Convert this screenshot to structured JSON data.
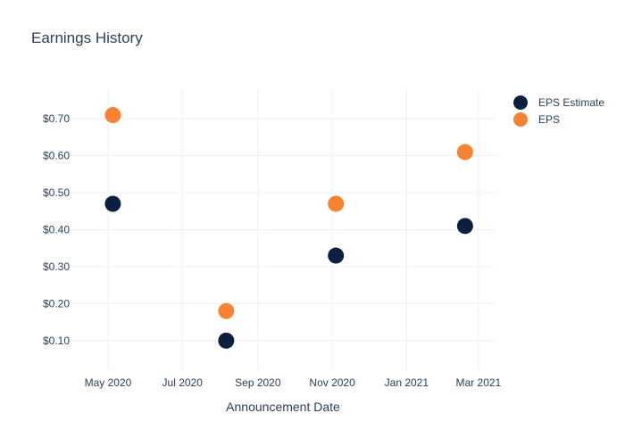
{
  "chart_data": {
    "type": "scatter",
    "title": "Earnings History",
    "xlabel": "Announcement Date",
    "ylabel": "",
    "x_ticks": [
      "May 2020",
      "Jul 2020",
      "Sep 2020",
      "Nov 2020",
      "Jan 2021",
      "Mar 2021"
    ],
    "y_ticks": [
      "$0.10",
      "$0.20",
      "$0.30",
      "$0.40",
      "$0.50",
      "$0.60",
      "$0.70"
    ],
    "x_range": [
      "2020-04-01",
      "2021-03-15"
    ],
    "ylim": [
      0.02,
      0.78
    ],
    "grid": true,
    "legend_position": "top-right",
    "series": [
      {
        "name": "EPS Estimate",
        "color": "#0c1f3f",
        "points": [
          {
            "x": "2020-05-05",
            "y": 0.47
          },
          {
            "x": "2020-08-06",
            "y": 0.1
          },
          {
            "x": "2020-11-04",
            "y": 0.33
          },
          {
            "x": "2021-02-18",
            "y": 0.41
          }
        ]
      },
      {
        "name": "EPS",
        "color": "#f68332",
        "points": [
          {
            "x": "2020-05-05",
            "y": 0.71
          },
          {
            "x": "2020-08-06",
            "y": 0.18
          },
          {
            "x": "2020-11-04",
            "y": 0.47
          },
          {
            "x": "2021-02-18",
            "y": 0.61
          }
        ]
      }
    ]
  }
}
